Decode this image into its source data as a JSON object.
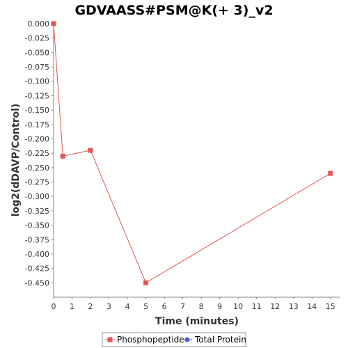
{
  "chart_data": {
    "type": "line",
    "title": "GDVAASS#PSM@K(+ 3)_v2",
    "xlabel": "Time (minutes)",
    "ylabel": "log2(dDAVP/Control)",
    "xlim": [
      0,
      15.5
    ],
    "ylim": [
      -0.475,
      0
    ],
    "x_ticks": [
      0,
      1,
      2,
      3,
      4,
      5,
      6,
      7,
      8,
      9,
      10,
      11,
      12,
      13,
      14,
      15
    ],
    "y_ticks": [
      0.0,
      -0.025,
      -0.05,
      -0.075,
      -0.1,
      -0.125,
      -0.15,
      -0.175,
      -0.2,
      -0.225,
      -0.25,
      -0.275,
      -0.3,
      -0.325,
      -0.35,
      -0.375,
      -0.4,
      -0.425,
      -0.45
    ],
    "grid": false,
    "legend_position": "bottom",
    "series": [
      {
        "name": "Phosphopeptide",
        "color": "#e05555",
        "marker": "square",
        "points": [
          {
            "x": 0,
            "y": 0.0
          },
          {
            "x": 0.5,
            "y": -0.23
          },
          {
            "x": 2,
            "y": -0.22
          },
          {
            "x": 5,
            "y": -0.45
          },
          {
            "x": 15,
            "y": -0.26
          }
        ]
      },
      {
        "name": "Total Protein",
        "color": "#5555e0",
        "marker": "circle",
        "points": []
      }
    ]
  }
}
